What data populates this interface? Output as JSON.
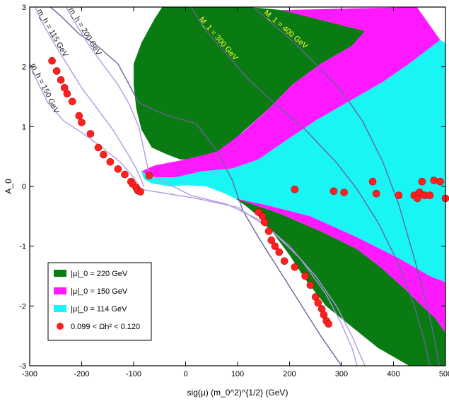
{
  "chart_data": {
    "type": "scatter",
    "xlabel": "sig(μ) (m_0^2)^{1/2} (GeV)",
    "ylabel": "A_0",
    "xlim": [
      -300,
      500
    ],
    "ylim": [
      -3,
      3
    ],
    "xticks": [
      "-300",
      "-200",
      "-100",
      "0",
      "100",
      "200",
      "300",
      "400",
      "500"
    ],
    "yticks": [
      "-3",
      "-2",
      "-1",
      "0",
      "1",
      "2",
      "3"
    ],
    "grid": false,
    "legend_position": "bottom-left",
    "legend": [
      {
        "label": "|μ|_0 = 220 GeV",
        "color": "#0a7a12",
        "kind": "box"
      },
      {
        "label": "|μ|_0 = 150 GeV",
        "color": "#ff19ff",
        "kind": "box"
      },
      {
        "label": "|μ|_0 = 114 GeV",
        "color": "#19f5f5",
        "kind": "box"
      },
      {
        "label": "0.099 < Ωh² < 0.120",
        "color": "#ff2020",
        "kind": "dot"
      }
    ],
    "regions": [
      {
        "name": "|μ|_0 = 220 GeV",
        "color": "#0a7a12",
        "points": [
          [
            -45,
            3.0
          ],
          [
            65,
            3.0
          ],
          [
            120,
            3.0
          ],
          [
            185,
            2.95
          ],
          [
            345,
            2.6
          ],
          [
            320,
            2.35
          ],
          [
            260,
            2.05
          ],
          [
            205,
            1.7
          ],
          [
            160,
            1.3
          ],
          [
            115,
            0.95
          ],
          [
            70,
            0.6
          ],
          [
            30,
            0.45
          ],
          [
            -10,
            0.45
          ],
          [
            -40,
            0.55
          ],
          [
            -65,
            0.65
          ],
          [
            -85,
            0.95
          ],
          [
            -95,
            1.3
          ],
          [
            -100,
            1.7
          ],
          [
            -100,
            2.05
          ],
          [
            -85,
            2.4
          ],
          [
            -60,
            2.8
          ]
        ]
      },
      {
        "name": "|μ|_0 = 220 GeV",
        "color": "#0a7a12",
        "points": [
          [
            95,
            -0.2
          ],
          [
            180,
            -0.45
          ],
          [
            260,
            -0.75
          ],
          [
            330,
            -1.05
          ],
          [
            375,
            -1.35
          ],
          [
            420,
            -1.7
          ],
          [
            455,
            -2.0
          ],
          [
            480,
            -2.2
          ],
          [
            500,
            -2.45
          ],
          [
            500,
            -3.0
          ],
          [
            430,
            -3.0
          ],
          [
            370,
            -2.7
          ],
          [
            320,
            -2.35
          ],
          [
            270,
            -2.0
          ],
          [
            230,
            -1.55
          ],
          [
            200,
            -1.15
          ],
          [
            170,
            -0.8
          ],
          [
            140,
            -0.5
          ],
          [
            115,
            -0.32
          ]
        ]
      },
      {
        "name": "|μ|_0 = 150 GeV",
        "color": "#ff19ff",
        "points": [
          [
            185,
            2.95
          ],
          [
            445,
            3.0
          ],
          [
            490,
            2.45
          ],
          [
            430,
            2.05
          ],
          [
            380,
            1.75
          ],
          [
            320,
            1.45
          ],
          [
            250,
            1.1
          ],
          [
            190,
            0.75
          ],
          [
            140,
            0.45
          ],
          [
            90,
            0.3
          ],
          [
            30,
            0.25
          ],
          [
            -20,
            0.15
          ],
          [
            -65,
            0.15
          ],
          [
            -85,
            0.25
          ],
          [
            -60,
            0.35
          ],
          [
            0,
            0.45
          ],
          [
            60,
            0.58
          ],
          [
            110,
            0.9
          ],
          [
            160,
            1.3
          ],
          [
            205,
            1.7
          ],
          [
            260,
            2.05
          ],
          [
            320,
            2.35
          ],
          [
            345,
            2.6
          ]
        ]
      },
      {
        "name": "|μ|_0 = 150 GeV",
        "color": "#ff19ff",
        "points": [
          [
            95,
            -0.2
          ],
          [
            160,
            -0.32
          ],
          [
            240,
            -0.5
          ],
          [
            330,
            -0.85
          ],
          [
            410,
            -1.2
          ],
          [
            470,
            -1.5
          ],
          [
            500,
            -1.6
          ],
          [
            500,
            -2.45
          ],
          [
            480,
            -2.2
          ],
          [
            455,
            -2.0
          ],
          [
            420,
            -1.7
          ],
          [
            375,
            -1.35
          ],
          [
            330,
            -1.05
          ],
          [
            260,
            -0.75
          ],
          [
            180,
            -0.45
          ]
        ]
      },
      {
        "name": "|μ|_0 = 114 GeV",
        "color": "#19f5f5",
        "points": [
          [
            490,
            2.45
          ],
          [
            500,
            2.4
          ],
          [
            500,
            -1.6
          ],
          [
            470,
            -1.5
          ],
          [
            410,
            -1.2
          ],
          [
            330,
            -0.85
          ],
          [
            240,
            -0.5
          ],
          [
            160,
            -0.32
          ],
          [
            95,
            -0.2
          ],
          [
            70,
            -0.1
          ],
          [
            40,
            0.0
          ],
          [
            0,
            0.02
          ],
          [
            -30,
            0.0
          ],
          [
            -65,
            0.05
          ],
          [
            -80,
            0.12
          ],
          [
            -85,
            0.25
          ],
          [
            -65,
            0.15
          ],
          [
            -20,
            0.15
          ],
          [
            30,
            0.25
          ],
          [
            90,
            0.3
          ],
          [
            140,
            0.45
          ],
          [
            190,
            0.75
          ],
          [
            250,
            1.1
          ],
          [
            320,
            1.45
          ],
          [
            380,
            1.75
          ],
          [
            430,
            2.05
          ]
        ]
      }
    ],
    "series": [
      {
        "name": "0.099 < Ωh² < 0.120",
        "color": "#ff2020",
        "points": [
          [
            -257,
            2.1
          ],
          [
            -248,
            1.93
          ],
          [
            -240,
            1.78
          ],
          [
            -233,
            1.65
          ],
          [
            -228,
            1.55
          ],
          [
            -218,
            1.42
          ],
          [
            -205,
            1.18
          ],
          [
            -200,
            1.07
          ],
          [
            -183,
            0.88
          ],
          [
            -168,
            0.65
          ],
          [
            -158,
            0.53
          ],
          [
            -145,
            0.41
          ],
          [
            -130,
            0.29
          ],
          [
            -117,
            0.2
          ],
          [
            -105,
            0.08
          ],
          [
            -102,
            0.04
          ],
          [
            -95,
            -0.02
          ],
          [
            -92,
            -0.07
          ],
          [
            -87,
            -0.09
          ],
          [
            -70,
            0.18
          ],
          [
            140,
            -0.43
          ],
          [
            148,
            -0.5
          ],
          [
            152,
            -0.6
          ],
          [
            160,
            -0.75
          ],
          [
            165,
            -0.9
          ],
          [
            172,
            -1.0
          ],
          [
            180,
            -1.1
          ],
          [
            190,
            -1.25
          ],
          [
            210,
            -1.35
          ],
          [
            230,
            -1.5
          ],
          [
            240,
            -1.65
          ],
          [
            250,
            -1.85
          ],
          [
            255,
            -1.95
          ],
          [
            262,
            -2.05
          ],
          [
            266,
            -2.15
          ],
          [
            271,
            -2.25
          ],
          [
            275,
            -2.3
          ],
          [
            210,
            -0.05
          ],
          [
            285,
            -0.08
          ],
          [
            305,
            -0.1
          ],
          [
            360,
            0.08
          ],
          [
            367,
            -0.12
          ],
          [
            410,
            -0.15
          ],
          [
            440,
            -0.15
          ],
          [
            446,
            -0.2
          ],
          [
            450,
            -0.1
          ],
          [
            455,
            0.08
          ],
          [
            460,
            -0.15
          ],
          [
            470,
            -0.15
          ],
          [
            478,
            0.1
          ],
          [
            490,
            0.08
          ],
          [
            500,
            -0.2
          ]
        ]
      }
    ],
    "curves": [
      {
        "label": "M_1 = 300 GeV",
        "color": "#666699",
        "points": [
          [
            10,
            3.0
          ],
          [
            40,
            2.6
          ],
          [
            80,
            2.2
          ],
          [
            120,
            1.8
          ],
          [
            170,
            1.4
          ],
          [
            230,
            0.95
          ],
          [
            290,
            0.4
          ],
          [
            330,
            -0.05
          ],
          [
            370,
            -0.6
          ],
          [
            410,
            -1.3
          ],
          [
            440,
            -2.0
          ],
          [
            460,
            -2.6
          ],
          [
            470,
            -3.0
          ]
        ]
      },
      {
        "label": "M_1 = 400 GeV",
        "color": "#666699",
        "points": [
          [
            130,
            3.0
          ],
          [
            170,
            2.7
          ],
          [
            210,
            2.4
          ],
          [
            250,
            2.05
          ],
          [
            300,
            1.6
          ],
          [
            340,
            1.1
          ],
          [
            380,
            0.4
          ],
          [
            410,
            -0.3
          ],
          [
            440,
            -1.2
          ],
          [
            465,
            -2.0
          ],
          [
            480,
            -2.6
          ],
          [
            488,
            -3.0
          ]
        ]
      },
      {
        "label": "",
        "color": "#666699",
        "points": [
          [
            -260,
            3.0
          ],
          [
            -240,
            2.85
          ],
          [
            -205,
            2.55
          ],
          [
            -170,
            2.35
          ],
          [
            -130,
            2.05
          ],
          [
            -90,
            1.4
          ],
          [
            -40,
            1.2
          ],
          [
            20,
            1.05
          ],
          [
            60,
            0.6
          ],
          [
            90,
            0.1
          ],
          [
            110,
            -0.4
          ],
          [
            140,
            -0.85
          ],
          [
            180,
            -1.4
          ],
          [
            220,
            -1.95
          ],
          [
            260,
            -2.5
          ],
          [
            300,
            -3.0
          ]
        ]
      },
      {
        "label": "m_h = 200 GeV",
        "color": "#b299e5",
        "points": [
          [
            -230,
            3.0
          ],
          [
            -210,
            2.7
          ],
          [
            -185,
            2.35
          ],
          [
            -160,
            2.05
          ],
          [
            -130,
            1.7
          ],
          [
            -110,
            1.4
          ],
          [
            -90,
            1.0
          ],
          [
            -80,
            0.6
          ],
          [
            -70,
            0.2
          ],
          [
            10,
            -0.15
          ],
          [
            80,
            -0.3
          ],
          [
            140,
            -0.55
          ],
          [
            200,
            -1.0
          ],
          [
            250,
            -1.5
          ],
          [
            290,
            -2.0
          ],
          [
            320,
            -2.5
          ],
          [
            345,
            -3.0
          ]
        ]
      },
      {
        "label": "m_h = 150 GeV",
        "color": "#b299e5",
        "points": [
          [
            -300,
            2.05
          ],
          [
            -285,
            1.75
          ],
          [
            -265,
            1.4
          ],
          [
            -235,
            1.1
          ],
          [
            -200,
            0.9
          ],
          [
            -160,
            0.65
          ],
          [
            -125,
            0.4
          ],
          [
            -100,
            0.15
          ],
          [
            -85,
            -0.05
          ],
          [
            20,
            -0.2
          ],
          [
            100,
            -0.35
          ],
          [
            160,
            -0.7
          ],
          [
            220,
            -1.2
          ],
          [
            270,
            -1.8
          ],
          [
            300,
            -2.3
          ],
          [
            320,
            -2.7
          ],
          [
            330,
            -3.0
          ]
        ]
      },
      {
        "label": "m_h = 115 GeV",
        "color": "#b299e5",
        "points": [
          [
            -290,
            3.0
          ],
          [
            -270,
            2.65
          ],
          [
            -250,
            2.35
          ],
          [
            -225,
            2.0
          ],
          [
            -200,
            1.65
          ],
          [
            -170,
            1.3
          ],
          [
            -140,
            0.95
          ],
          [
            -115,
            0.6
          ],
          [
            -95,
            0.3
          ],
          [
            -85,
            0.1
          ],
          [
            -80,
            0.0
          ]
        ]
      }
    ]
  }
}
